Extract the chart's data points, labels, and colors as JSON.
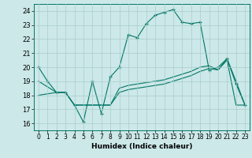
{
  "xlabel": "Humidex (Indice chaleur)",
  "ylabel": "",
  "background_color": "#cce8e8",
  "grid_color": "#aacccc",
  "line_color": "#007766",
  "xlim": [
    -0.5,
    23.5
  ],
  "ylim": [
    15.5,
    24.5
  ],
  "xticks": [
    0,
    1,
    2,
    3,
    4,
    5,
    6,
    7,
    8,
    9,
    10,
    11,
    12,
    13,
    14,
    15,
    16,
    17,
    18,
    19,
    20,
    21,
    22,
    23
  ],
  "yticks": [
    16,
    17,
    18,
    19,
    20,
    21,
    22,
    23,
    24
  ],
  "line1_x": [
    0,
    1,
    2,
    3,
    4,
    5,
    6,
    7,
    8,
    9,
    10,
    11,
    12,
    13,
    14,
    15,
    16,
    17,
    18,
    19,
    20,
    21,
    22,
    23
  ],
  "line1_y": [
    20,
    19,
    18.2,
    18.2,
    17.3,
    16.1,
    19.0,
    16.7,
    19.3,
    20.0,
    22.3,
    22.1,
    23.1,
    23.7,
    23.9,
    24.1,
    23.2,
    23.1,
    23.2,
    19.8,
    20.0,
    20.6,
    18.8,
    17.3
  ],
  "line2_x": [
    0,
    2,
    3,
    4,
    5,
    6,
    7,
    8,
    9,
    10,
    11,
    12,
    13,
    14,
    15,
    16,
    17,
    18,
    19,
    20,
    21,
    22,
    23
  ],
  "line2_y": [
    19.0,
    18.2,
    18.2,
    17.3,
    17.3,
    17.3,
    17.3,
    17.3,
    18.5,
    18.7,
    18.8,
    18.9,
    19.0,
    19.1,
    19.3,
    19.5,
    19.7,
    20.0,
    20.1,
    19.8,
    20.6,
    19.0,
    17.3
  ],
  "line3_x": [
    0,
    2,
    3,
    4,
    5,
    6,
    7,
    8,
    9,
    10,
    11,
    12,
    13,
    14,
    15,
    16,
    17,
    18,
    19,
    20,
    21,
    22,
    23
  ],
  "line3_y": [
    18.0,
    18.2,
    18.2,
    17.3,
    17.3,
    17.3,
    17.3,
    17.3,
    18.2,
    18.4,
    18.5,
    18.6,
    18.7,
    18.8,
    19.0,
    19.2,
    19.4,
    19.7,
    19.9,
    19.8,
    20.5,
    17.3,
    17.3
  ]
}
